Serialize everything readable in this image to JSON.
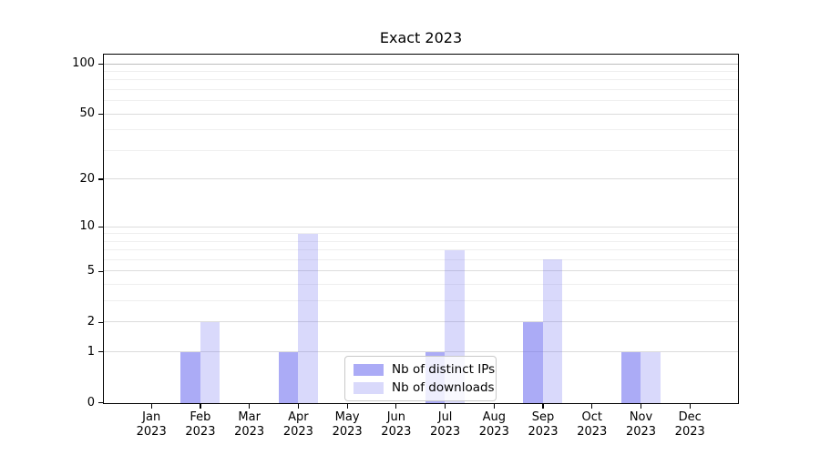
{
  "chart_data": {
    "type": "bar",
    "title": "Exact 2023",
    "categories": [
      "Jan",
      "Feb",
      "Mar",
      "Apr",
      "May",
      "Jun",
      "Jul",
      "Aug",
      "Sep",
      "Oct",
      "Nov",
      "Dec"
    ],
    "category_year": "2023",
    "series": [
      {
        "name": "Nb of distinct IPs",
        "color": "#6666ee",
        "alpha": 0.55,
        "color_on_white": "#a9a9f5",
        "values": [
          0,
          1,
          0,
          1,
          0,
          0,
          1,
          0,
          2,
          0,
          1,
          0
        ]
      },
      {
        "name": "Nb of downloads",
        "color": "#6666ee",
        "alpha": 0.25,
        "color_on_white": "#d9d9f9",
        "values": [
          0,
          2,
          0,
          9,
          0,
          0,
          7,
          0,
          6,
          0,
          1,
          0
        ]
      }
    ],
    "yscale": "log10(value+1)",
    "ylim": [
      0,
      112
    ],
    "ytick_labels": [
      "0",
      "1",
      "2",
      "5",
      "10",
      "20",
      "50",
      "100"
    ],
    "ytick_values": [
      0,
      1,
      2,
      5,
      10,
      20,
      50,
      100
    ],
    "minor_grid_values": [
      3,
      4,
      6,
      7,
      8,
      9,
      30,
      40,
      60,
      70,
      80,
      90
    ],
    "grid": "horizontal",
    "legend_position": "inside-bottom-center"
  }
}
